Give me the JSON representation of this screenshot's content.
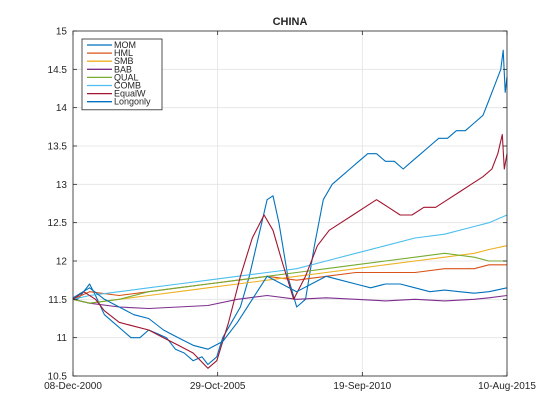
{
  "chart_data": {
    "type": "line",
    "title": "CHINA",
    "xlabel": "",
    "ylabel": "",
    "x_ticks": [
      "08-Dec-2000",
      "29-Oct-2005",
      "19-Sep-2010",
      "10-Aug-2015"
    ],
    "x_tick_years": [
      2000.94,
      2005.83,
      2010.72,
      2015.61
    ],
    "xlim": [
      2000.94,
      2015.61
    ],
    "ylim": [
      10.5,
      15
    ],
    "y_ticks": [
      10.5,
      11,
      11.5,
      12,
      12.5,
      13,
      13.5,
      14,
      14.5,
      15
    ],
    "grid": true,
    "legend_position": "top-left",
    "series": [
      {
        "name": "MOM",
        "color": "#0072bd",
        "points": [
          [
            2000.94,
            11.52
          ],
          [
            2001.1,
            11.5
          ],
          [
            2001.3,
            11.6
          ],
          [
            2001.5,
            11.7
          ],
          [
            2001.7,
            11.55
          ],
          [
            2002.0,
            11.3
          ],
          [
            2002.3,
            11.2
          ],
          [
            2002.6,
            11.1
          ],
          [
            2002.9,
            11.0
          ],
          [
            2003.2,
            11.0
          ],
          [
            2003.5,
            11.1
          ],
          [
            2003.8,
            11.05
          ],
          [
            2004.1,
            11.0
          ],
          [
            2004.4,
            10.85
          ],
          [
            2004.7,
            10.8
          ],
          [
            2005.0,
            10.7
          ],
          [
            2005.3,
            10.75
          ],
          [
            2005.5,
            10.65
          ],
          [
            2005.8,
            10.75
          ],
          [
            2006.0,
            11.0
          ],
          [
            2006.3,
            11.2
          ],
          [
            2006.6,
            11.4
          ],
          [
            2006.9,
            11.8
          ],
          [
            2007.2,
            12.3
          ],
          [
            2007.5,
            12.8
          ],
          [
            2007.7,
            12.85
          ],
          [
            2007.9,
            12.5
          ],
          [
            2008.2,
            11.8
          ],
          [
            2008.5,
            11.4
          ],
          [
            2008.8,
            11.5
          ],
          [
            2009.1,
            12.2
          ],
          [
            2009.4,
            12.8
          ],
          [
            2009.7,
            13.0
          ],
          [
            2010.0,
            13.1
          ],
          [
            2010.3,
            13.2
          ],
          [
            2010.6,
            13.3
          ],
          [
            2010.9,
            13.4
          ],
          [
            2011.2,
            13.4
          ],
          [
            2011.5,
            13.3
          ],
          [
            2011.8,
            13.3
          ],
          [
            2012.1,
            13.2
          ],
          [
            2012.4,
            13.3
          ],
          [
            2012.7,
            13.4
          ],
          [
            2013.0,
            13.5
          ],
          [
            2013.3,
            13.6
          ],
          [
            2013.6,
            13.6
          ],
          [
            2013.9,
            13.7
          ],
          [
            2014.2,
            13.7
          ],
          [
            2014.5,
            13.8
          ],
          [
            2014.8,
            13.9
          ],
          [
            2015.0,
            14.1
          ],
          [
            2015.2,
            14.3
          ],
          [
            2015.4,
            14.5
          ],
          [
            2015.48,
            14.75
          ],
          [
            2015.55,
            14.2
          ],
          [
            2015.61,
            14.4
          ]
        ]
      },
      {
        "name": "HML",
        "color": "#d95319",
        "points": [
          [
            2000.94,
            11.5
          ],
          [
            2001.5,
            11.6
          ],
          [
            2002.5,
            11.55
          ],
          [
            2003.5,
            11.6
          ],
          [
            2004.5,
            11.65
          ],
          [
            2005.5,
            11.7
          ],
          [
            2006.5,
            11.75
          ],
          [
            2007.5,
            11.8
          ],
          [
            2008.5,
            11.75
          ],
          [
            2009.5,
            11.8
          ],
          [
            2010.5,
            11.85
          ],
          [
            2011.5,
            11.85
          ],
          [
            2012.5,
            11.85
          ],
          [
            2013.5,
            11.9
          ],
          [
            2014.5,
            11.9
          ],
          [
            2015.0,
            11.95
          ],
          [
            2015.61,
            11.95
          ]
        ]
      },
      {
        "name": "SMB",
        "color": "#edb120",
        "points": [
          [
            2000.94,
            11.5
          ],
          [
            2001.5,
            11.45
          ],
          [
            2002.5,
            11.5
          ],
          [
            2003.5,
            11.55
          ],
          [
            2004.5,
            11.6
          ],
          [
            2005.5,
            11.65
          ],
          [
            2006.5,
            11.7
          ],
          [
            2007.5,
            11.75
          ],
          [
            2008.5,
            11.8
          ],
          [
            2009.5,
            11.85
          ],
          [
            2010.5,
            11.9
          ],
          [
            2011.5,
            11.95
          ],
          [
            2012.5,
            12.0
          ],
          [
            2013.5,
            12.05
          ],
          [
            2014.5,
            12.1
          ],
          [
            2015.0,
            12.15
          ],
          [
            2015.61,
            12.2
          ]
        ]
      },
      {
        "name": "BAB",
        "color": "#7e2f8e",
        "points": [
          [
            2000.94,
            11.5
          ],
          [
            2001.5,
            11.45
          ],
          [
            2002.5,
            11.4
          ],
          [
            2003.5,
            11.38
          ],
          [
            2004.5,
            11.4
          ],
          [
            2005.5,
            11.42
          ],
          [
            2006.5,
            11.5
          ],
          [
            2007.5,
            11.55
          ],
          [
            2008.5,
            11.5
          ],
          [
            2009.5,
            11.52
          ],
          [
            2010.5,
            11.5
          ],
          [
            2011.5,
            11.48
          ],
          [
            2012.5,
            11.5
          ],
          [
            2013.5,
            11.48
          ],
          [
            2014.5,
            11.5
          ],
          [
            2015.0,
            11.52
          ],
          [
            2015.61,
            11.55
          ]
        ]
      },
      {
        "name": "QUAL",
        "color": "#77ac30",
        "points": [
          [
            2000.94,
            11.5
          ],
          [
            2001.5,
            11.45
          ],
          [
            2002.5,
            11.5
          ],
          [
            2003.5,
            11.6
          ],
          [
            2004.5,
            11.65
          ],
          [
            2005.5,
            11.7
          ],
          [
            2006.5,
            11.75
          ],
          [
            2007.5,
            11.8
          ],
          [
            2008.5,
            11.85
          ],
          [
            2009.5,
            11.9
          ],
          [
            2010.5,
            11.95
          ],
          [
            2011.5,
            12.0
          ],
          [
            2012.5,
            12.05
          ],
          [
            2013.5,
            12.1
          ],
          [
            2014.5,
            12.05
          ],
          [
            2015.0,
            12.0
          ],
          [
            2015.61,
            12.0
          ]
        ]
      },
      {
        "name": "COMB",
        "color": "#4dbeee",
        "points": [
          [
            2000.94,
            11.5
          ],
          [
            2001.5,
            11.55
          ],
          [
            2002.5,
            11.6
          ],
          [
            2003.5,
            11.65
          ],
          [
            2004.5,
            11.7
          ],
          [
            2005.5,
            11.75
          ],
          [
            2006.5,
            11.8
          ],
          [
            2007.5,
            11.85
          ],
          [
            2008.5,
            11.9
          ],
          [
            2009.5,
            12.0
          ],
          [
            2010.5,
            12.1
          ],
          [
            2011.5,
            12.2
          ],
          [
            2012.5,
            12.3
          ],
          [
            2013.5,
            12.35
          ],
          [
            2014.5,
            12.45
          ],
          [
            2015.0,
            12.5
          ],
          [
            2015.61,
            12.6
          ]
        ]
      },
      {
        "name": "EqualW",
        "color": "#a2142f",
        "points": [
          [
            2000.94,
            11.5
          ],
          [
            2001.3,
            11.6
          ],
          [
            2001.7,
            11.5
          ],
          [
            2002.0,
            11.35
          ],
          [
            2002.5,
            11.2
          ],
          [
            2003.0,
            11.15
          ],
          [
            2003.5,
            11.1
          ],
          [
            2004.0,
            11.0
          ],
          [
            2004.5,
            10.9
          ],
          [
            2005.0,
            10.8
          ],
          [
            2005.5,
            10.6
          ],
          [
            2005.8,
            10.7
          ],
          [
            2006.2,
            11.2
          ],
          [
            2006.6,
            11.8
          ],
          [
            2007.0,
            12.3
          ],
          [
            2007.4,
            12.6
          ],
          [
            2007.7,
            12.4
          ],
          [
            2008.0,
            12.0
          ],
          [
            2008.4,
            11.5
          ],
          [
            2008.8,
            11.8
          ],
          [
            2009.2,
            12.2
          ],
          [
            2009.6,
            12.4
          ],
          [
            2010.0,
            12.5
          ],
          [
            2010.4,
            12.6
          ],
          [
            2010.8,
            12.7
          ],
          [
            2011.2,
            12.8
          ],
          [
            2011.6,
            12.7
          ],
          [
            2012.0,
            12.6
          ],
          [
            2012.4,
            12.6
          ],
          [
            2012.8,
            12.7
          ],
          [
            2013.2,
            12.7
          ],
          [
            2013.6,
            12.8
          ],
          [
            2014.0,
            12.9
          ],
          [
            2014.4,
            13.0
          ],
          [
            2014.8,
            13.1
          ],
          [
            2015.1,
            13.2
          ],
          [
            2015.3,
            13.4
          ],
          [
            2015.45,
            13.65
          ],
          [
            2015.52,
            13.2
          ],
          [
            2015.61,
            13.4
          ]
        ]
      },
      {
        "name": "Longonly",
        "color": "#0072bd",
        "points": [
          [
            2000.94,
            11.52
          ],
          [
            2001.5,
            11.65
          ],
          [
            2002.0,
            11.5
          ],
          [
            2002.5,
            11.4
          ],
          [
            2003.0,
            11.3
          ],
          [
            2003.5,
            11.25
          ],
          [
            2004.0,
            11.1
          ],
          [
            2004.5,
            11.0
          ],
          [
            2005.0,
            10.9
          ],
          [
            2005.5,
            10.85
          ],
          [
            2006.0,
            10.95
          ],
          [
            2006.5,
            11.2
          ],
          [
            2007.0,
            11.5
          ],
          [
            2007.5,
            11.8
          ],
          [
            2008.0,
            11.7
          ],
          [
            2008.5,
            11.6
          ],
          [
            2009.0,
            11.7
          ],
          [
            2009.5,
            11.8
          ],
          [
            2010.0,
            11.75
          ],
          [
            2010.5,
            11.7
          ],
          [
            2011.0,
            11.65
          ],
          [
            2011.5,
            11.7
          ],
          [
            2012.0,
            11.7
          ],
          [
            2012.5,
            11.65
          ],
          [
            2013.0,
            11.6
          ],
          [
            2013.5,
            11.62
          ],
          [
            2014.0,
            11.6
          ],
          [
            2014.5,
            11.58
          ],
          [
            2015.0,
            11.6
          ],
          [
            2015.61,
            11.65
          ]
        ]
      }
    ]
  }
}
